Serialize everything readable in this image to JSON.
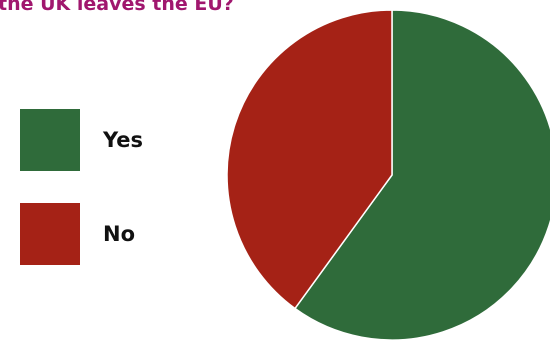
{
  "title_color": "#a0176e",
  "chart_data": {
    "type": "pie",
    "title": "the UK leaves the EU?",
    "labels": [
      "Yes",
      "No"
    ],
    "values": [
      60,
      40
    ],
    "colors": [
      "#2f6b3a",
      "#a52216"
    ],
    "legend_position": "left"
  }
}
